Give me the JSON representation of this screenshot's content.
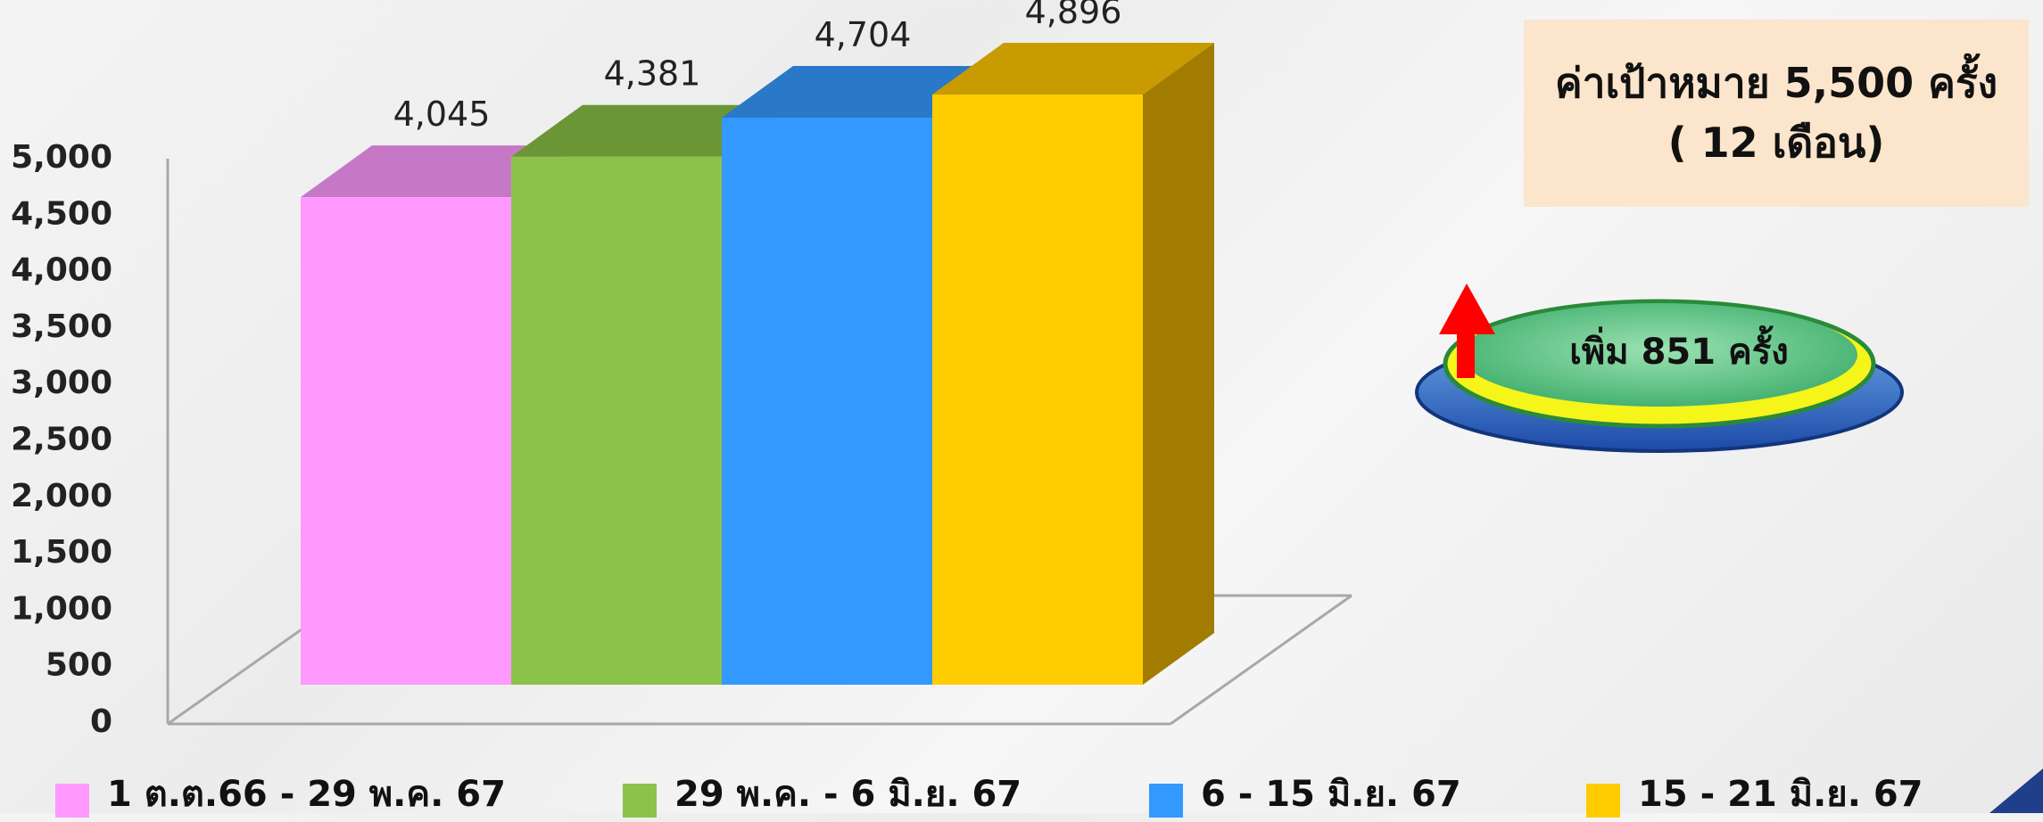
{
  "chart_data": {
    "type": "bar",
    "categories": [
      "1 ต.ต.66 - 29 พ.ค. 67",
      "29 พ.ค. - 6 มิ.ย. 67",
      "6 - 15 มิ.ย. 67",
      "15 - 21 มิ.ย. 67"
    ],
    "values": [
      4045,
      4381,
      4704,
      4896
    ],
    "data_labels": [
      "4,045",
      "4,381",
      "4,704",
      "4,896"
    ],
    "ylim": [
      0,
      5000
    ],
    "yticks": [
      0,
      500,
      1000,
      1500,
      2000,
      2500,
      3000,
      3500,
      4000,
      4500,
      5000
    ],
    "ytick_labels": [
      "0",
      "500",
      "1,000",
      "1,500",
      "2,000",
      "2,500",
      "3,000",
      "3,500",
      "4,000",
      "4,500",
      "5,000"
    ],
    "colors": [
      "#ff99ff",
      "#8bc34a",
      "#3399ff",
      "#ffcc00"
    ],
    "top_colors": [
      "#c678c6",
      "#6b9636",
      "#2a78c8",
      "#c89b00"
    ],
    "side_colors": [
      null,
      null,
      null,
      "#a27c00"
    ],
    "style": "3d-clustered",
    "legend_position": "bottom",
    "grid": false
  },
  "target": {
    "line1": "ค่าเป้าหมาย 5,500 ครั้ง",
    "line2": "( 12 เดือน)"
  },
  "badge": {
    "text": "เพิ่ม 851 ครั้ง",
    "icon": "up-arrow-icon",
    "arrow_color": "#ff0000"
  }
}
